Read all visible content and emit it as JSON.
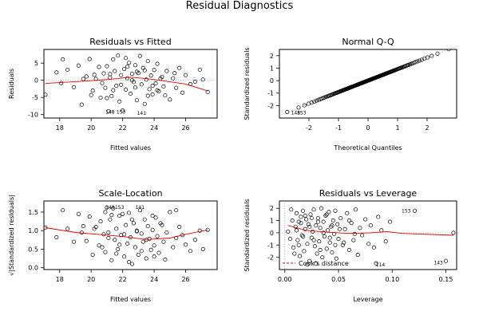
{
  "figure_title": "Residual Diagnostics",
  "chart_data": [
    {
      "type": "scatter",
      "title": "Residuals vs Fitted",
      "xlabel": "Fitted values",
      "ylabel": "Residuals",
      "xlim": [
        17,
        28
      ],
      "ylim": [
        -11,
        9
      ],
      "xticks": [
        18,
        20,
        22,
        24,
        26
      ],
      "yticks": [
        -10,
        -5,
        0,
        5
      ],
      "points": [
        [
          17.1,
          -4.2
        ],
        [
          17.8,
          2.3
        ],
        [
          18.2,
          6.1
        ],
        [
          18.5,
          3.1
        ],
        [
          18.1,
          -0.8
        ],
        [
          18.9,
          -2.0
        ],
        [
          19.2,
          4.3
        ],
        [
          19.4,
          -7.1
        ],
        [
          19.7,
          1.1
        ],
        [
          19.9,
          6.2
        ],
        [
          20.1,
          -3.0
        ],
        [
          20.3,
          0.4
        ],
        [
          20.5,
          3.9
        ],
        [
          20.6,
          -5.1
        ],
        [
          20.8,
          2.0
        ],
        [
          20.9,
          -2.2
        ],
        [
          21.0,
          4.1
        ],
        [
          21.1,
          -9.0
        ],
        [
          21.2,
          0.8
        ],
        [
          21.3,
          -4.6
        ],
        [
          21.4,
          6.1
        ],
        [
          21.5,
          2.7
        ],
        [
          21.6,
          -1.6
        ],
        [
          21.7,
          7.2
        ],
        [
          21.8,
          -6.2
        ],
        [
          21.9,
          1.5
        ],
        [
          22.0,
          -8.8
        ],
        [
          22.1,
          3.3
        ],
        [
          22.2,
          -2.7
        ],
        [
          22.3,
          0.6
        ],
        [
          22.4,
          5.1
        ],
        [
          22.5,
          -3.9
        ],
        [
          22.6,
          1.9
        ],
        [
          22.7,
          -0.5
        ],
        [
          22.8,
          4.4
        ],
        [
          22.9,
          -5.8
        ],
        [
          23.0,
          2.1
        ],
        [
          23.1,
          7.1
        ],
        [
          23.2,
          -1.2
        ],
        [
          23.3,
          3.6
        ],
        [
          23.4,
          -6.9
        ],
        [
          23.5,
          0.2
        ],
        [
          23.6,
          5.6
        ],
        [
          23.7,
          -2.6
        ],
        [
          23.8,
          1.4
        ],
        [
          23.9,
          -4.1
        ],
        [
          24.0,
          3.0
        ],
        [
          24.1,
          -0.9
        ],
        [
          24.2,
          4.8
        ],
        [
          24.3,
          -3.2
        ],
        [
          24.5,
          1.0
        ],
        [
          24.6,
          -1.8
        ],
        [
          24.8,
          2.7
        ],
        [
          25.0,
          -5.6
        ],
        [
          25.2,
          0.6
        ],
        [
          25.4,
          -2.2
        ],
        [
          25.6,
          3.6
        ],
        [
          25.8,
          -3.6
        ],
        [
          26.0,
          1.5
        ],
        [
          26.3,
          -1.1
        ],
        [
          26.6,
          -0.4
        ],
        [
          26.9,
          3.1
        ],
        [
          27.1,
          0.2
        ],
        [
          27.4,
          -3.4
        ],
        [
          22.3,
          4.0
        ],
        [
          21.2,
          1.8
        ],
        [
          20.7,
          -0.8
        ],
        [
          23.4,
          2.9
        ],
        [
          22.8,
          -2.1
        ],
        [
          24.4,
          0.5
        ],
        [
          21.9,
          -1.3
        ],
        [
          22.9,
          2.5
        ],
        [
          20.2,
          1.6
        ],
        [
          23.9,
          -1.6
        ],
        [
          21.4,
          -2.9
        ],
        [
          22.6,
          0.0
        ],
        [
          24.7,
          -4.4
        ],
        [
          25.3,
          2.1
        ],
        [
          19.5,
          0.4
        ],
        [
          21.0,
          -5.2
        ],
        [
          22.2,
          6.5
        ],
        [
          23.6,
          -4.5
        ],
        [
          24.2,
          -2.9
        ],
        [
          20.0,
          -4.3
        ]
      ],
      "smooth": [
        [
          17.1,
          -0.9
        ],
        [
          19.0,
          -0.4
        ],
        [
          21.0,
          0.2
        ],
        [
          22.5,
          0.9
        ],
        [
          23.5,
          0.5
        ],
        [
          24.5,
          -0.1
        ],
        [
          26.0,
          -1.1
        ],
        [
          27.4,
          -3.1
        ]
      ],
      "annotations": [
        {
          "text": "148",
          "x": 21.2,
          "y": -9.3
        },
        {
          "text": "153",
          "x": 21.9,
          "y": -9.3
        },
        {
          "text": "141",
          "x": 23.2,
          "y": -9.6
        }
      ]
    },
    {
      "type": "scatter",
      "title": "Normal Q-Q",
      "xlabel": "Theoretical Quantiles",
      "ylabel": "Standardized residuals",
      "xlim": [
        -3,
        3
      ],
      "ylim": [
        -3,
        2.5
      ],
      "xticks": [
        -2,
        -1,
        0,
        1,
        2
      ],
      "yticks": [
        -2,
        -1,
        0,
        1,
        2
      ],
      "qq_n": 160,
      "qq_slope": 0.92,
      "refline": [
        [
          -3,
          -2.8
        ],
        [
          3,
          2.75
        ]
      ],
      "annotations": [
        {
          "text": "148",
          "x": -2.45,
          "y": -2.6
        },
        {
          "text": "153",
          "x": -2.25,
          "y": -2.6
        }
      ]
    },
    {
      "type": "scatter",
      "title": "Scale-Location",
      "xlabel": "Fitted values",
      "ylabel": "√|Standardized residuals|",
      "xlim": [
        17,
        28
      ],
      "ylim": [
        -0.05,
        1.8
      ],
      "xticks": [
        18,
        20,
        22,
        24,
        26
      ],
      "yticks": [
        0.0,
        0.5,
        1.0,
        1.5
      ],
      "points": [
        [
          17.1,
          1.08
        ],
        [
          17.8,
          0.82
        ],
        [
          18.2,
          1.55
        ],
        [
          18.5,
          1.05
        ],
        [
          18.9,
          0.7
        ],
        [
          19.2,
          1.45
        ],
        [
          19.4,
          0.95
        ],
        [
          19.7,
          0.72
        ],
        [
          19.9,
          1.38
        ],
        [
          20.1,
          0.35
        ],
        [
          20.3,
          1.1
        ],
        [
          20.5,
          0.6
        ],
        [
          20.6,
          1.25
        ],
        [
          20.8,
          0.9
        ],
        [
          20.9,
          0.42
        ],
        [
          21.0,
          1.62
        ],
        [
          21.1,
          0.8
        ],
        [
          21.2,
          1.3
        ],
        [
          21.3,
          0.2
        ],
        [
          21.4,
          1.6
        ],
        [
          21.5,
          0.75
        ],
        [
          21.6,
          1.05
        ],
        [
          21.7,
          0.5
        ],
        [
          21.8,
          1.4
        ],
        [
          21.9,
          0.88
        ],
        [
          22.0,
          1.45
        ],
        [
          22.1,
          0.3
        ],
        [
          22.2,
          1.15
        ],
        [
          22.3,
          0.65
        ],
        [
          22.4,
          1.48
        ],
        [
          22.5,
          0.82
        ],
        [
          22.6,
          0.1
        ],
        [
          22.7,
          1.2
        ],
        [
          22.8,
          0.55
        ],
        [
          22.9,
          1.0
        ],
        [
          23.0,
          0.35
        ],
        [
          23.1,
          1.55
        ],
        [
          23.2,
          0.92
        ],
        [
          23.3,
          0.7
        ],
        [
          23.4,
          1.3
        ],
        [
          23.5,
          0.25
        ],
        [
          23.6,
          1.12
        ],
        [
          23.7,
          0.78
        ],
        [
          23.8,
          0.48
        ],
        [
          23.9,
          1.02
        ],
        [
          24.0,
          0.6
        ],
        [
          24.1,
          1.35
        ],
        [
          24.2,
          0.85
        ],
        [
          24.3,
          0.4
        ],
        [
          24.5,
          1.15
        ],
        [
          24.6,
          0.7
        ],
        [
          24.8,
          0.95
        ],
        [
          25.0,
          1.5
        ],
        [
          25.2,
          0.55
        ],
        [
          25.4,
          0.8
        ],
        [
          25.6,
          1.1
        ],
        [
          25.8,
          0.88
        ],
        [
          26.0,
          0.62
        ],
        [
          26.3,
          0.45
        ],
        [
          26.6,
          0.75
        ],
        [
          26.9,
          1.0
        ],
        [
          27.1,
          0.5
        ],
        [
          27.4,
          1.02
        ],
        [
          20.2,
          1.05
        ],
        [
          21.3,
          1.42
        ],
        [
          22.9,
          0.98
        ],
        [
          23.5,
          0.75
        ],
        [
          20.7,
          0.55
        ],
        [
          24.4,
          1.2
        ],
        [
          22.1,
          0.9
        ],
        [
          21.8,
          0.62
        ],
        [
          23.9,
          1.4
        ],
        [
          25.4,
          1.55
        ],
        [
          19.5,
          1.12
        ],
        [
          22.6,
          1.3
        ],
        [
          24.0,
          0.3
        ],
        [
          20.9,
          1.5
        ],
        [
          22.4,
          0.15
        ],
        [
          21.6,
          0.38
        ],
        [
          23.2,
          0.45
        ],
        [
          24.7,
          0.22
        ],
        [
          21.1,
          0.95
        ]
      ],
      "smooth": [
        [
          17.1,
          1.08
        ],
        [
          19.0,
          0.95
        ],
        [
          21.0,
          0.88
        ],
        [
          22.0,
          0.84
        ],
        [
          23.5,
          0.76
        ],
        [
          25.0,
          0.8
        ],
        [
          26.0,
          0.9
        ],
        [
          27.4,
          1.02
        ]
      ],
      "annotations": [
        {
          "text": "148",
          "x": 21.2,
          "y": 1.63
        },
        {
          "text": "153",
          "x": 21.8,
          "y": 1.63
        },
        {
          "text": "141",
          "x": 23.1,
          "y": 1.63
        }
      ]
    },
    {
      "type": "scatter",
      "title": "Residuals vs Leverage",
      "xlabel": "Leverage",
      "ylabel": "Standardized residuals",
      "xlim": [
        -0.005,
        0.16
      ],
      "ylim": [
        -3,
        2.6
      ],
      "xticks": [
        0.0,
        0.05,
        0.1,
        0.15
      ],
      "xticklabels": [
        "0.00",
        "0.05",
        "0.10",
        "0.15"
      ],
      "yticks": [
        -2,
        -1,
        0,
        1,
        2
      ],
      "legend": "Cook's distance",
      "legend_loc": "bottom-left",
      "points": [
        [
          0.006,
          1.9
        ],
        [
          0.008,
          -1.2
        ],
        [
          0.01,
          0.5
        ],
        [
          0.011,
          1.6
        ],
        [
          0.012,
          -0.6
        ],
        [
          0.013,
          0.9
        ],
        [
          0.014,
          -1.9
        ],
        [
          0.015,
          1.3
        ],
        [
          0.016,
          -0.2
        ],
        [
          0.017,
          1.8
        ],
        [
          0.018,
          -1.5
        ],
        [
          0.019,
          0.3
        ],
        [
          0.02,
          1.1
        ],
        [
          0.021,
          -0.9
        ],
        [
          0.022,
          0.7
        ],
        [
          0.023,
          -2.3
        ],
        [
          0.024,
          1.5
        ],
        [
          0.025,
          -0.4
        ],
        [
          0.026,
          0.1
        ],
        [
          0.027,
          1.9
        ],
        [
          0.028,
          -1.1
        ],
        [
          0.029,
          0.6
        ],
        [
          0.03,
          -1.7
        ],
        [
          0.031,
          1.2
        ],
        [
          0.032,
          -0.7
        ],
        [
          0.033,
          0.4
        ],
        [
          0.034,
          2.0
        ],
        [
          0.035,
          -2.0
        ],
        [
          0.036,
          0.9
        ],
        [
          0.037,
          -0.3
        ],
        [
          0.038,
          1.4
        ],
        [
          0.039,
          -1.3
        ],
        [
          0.04,
          0.2
        ],
        [
          0.041,
          1.7
        ],
        [
          0.042,
          -0.8
        ],
        [
          0.043,
          0.5
        ],
        [
          0.044,
          -1.6
        ],
        [
          0.045,
          1.0
        ],
        [
          0.046,
          -0.1
        ],
        [
          0.047,
          1.8
        ],
        [
          0.048,
          -2.1
        ],
        [
          0.049,
          0.7
        ],
        [
          0.05,
          -0.5
        ],
        [
          0.052,
          1.2
        ],
        [
          0.054,
          -1.0
        ],
        [
          0.056,
          0.3
        ],
        [
          0.058,
          1.6
        ],
        [
          0.06,
          -1.4
        ],
        [
          0.062,
          0.8
        ],
        [
          0.064,
          -0.6
        ],
        [
          0.066,
          1.9
        ],
        [
          0.068,
          -1.8
        ],
        [
          0.07,
          0.4
        ],
        [
          0.072,
          -0.2
        ],
        [
          0.075,
          1.1
        ],
        [
          0.078,
          -0.9
        ],
        [
          0.08,
          0.6
        ],
        [
          0.083,
          -1.2
        ],
        [
          0.087,
          1.3
        ],
        [
          0.09,
          0.2
        ],
        [
          0.094,
          -0.7
        ],
        [
          0.098,
          0.9
        ],
        [
          0.003,
          0.1
        ],
        [
          0.005,
          -0.5
        ],
        [
          0.007,
          1.0
        ],
        [
          0.009,
          -1.7
        ],
        [
          0.011,
          0.2
        ],
        [
          0.013,
          -1.0
        ],
        [
          0.015,
          0.8
        ],
        [
          0.017,
          -0.3
        ],
        [
          0.019,
          1.4
        ],
        [
          0.021,
          -2.6
        ],
        [
          0.023,
          0.5
        ],
        [
          0.025,
          1.2
        ],
        [
          0.027,
          -0.6
        ],
        [
          0.029,
          -2.5
        ],
        [
          0.031,
          0.9
        ],
        [
          0.033,
          -1.4
        ],
        [
          0.036,
          0.0
        ],
        [
          0.039,
          1.5
        ],
        [
          0.042,
          -0.4
        ],
        [
          0.044,
          0.6
        ],
        [
          0.047,
          -1.0
        ],
        [
          0.051,
          0.3
        ],
        [
          0.055,
          -0.8
        ],
        [
          0.06,
          1.0
        ],
        [
          0.065,
          -0.1
        ],
        [
          0.085,
          -2.5
        ],
        [
          0.121,
          1.8
        ],
        [
          0.15,
          -2.3
        ],
        [
          0.157,
          0.0
        ]
      ],
      "smooth": [
        [
          0.003,
          0.6
        ],
        [
          0.02,
          0.2
        ],
        [
          0.04,
          0.05
        ],
        [
          0.06,
          -0.05
        ],
        [
          0.08,
          0.0
        ],
        [
          0.095,
          0.1
        ],
        [
          0.11,
          -0.05
        ],
        [
          0.157,
          -0.2
        ]
      ],
      "annotations": [
        {
          "text": "153",
          "x": 0.113,
          "y": 1.8
        },
        {
          "text": "114",
          "x": 0.089,
          "y": -2.6
        },
        {
          "text": "143",
          "x": 0.143,
          "y": -2.45
        }
      ]
    }
  ]
}
